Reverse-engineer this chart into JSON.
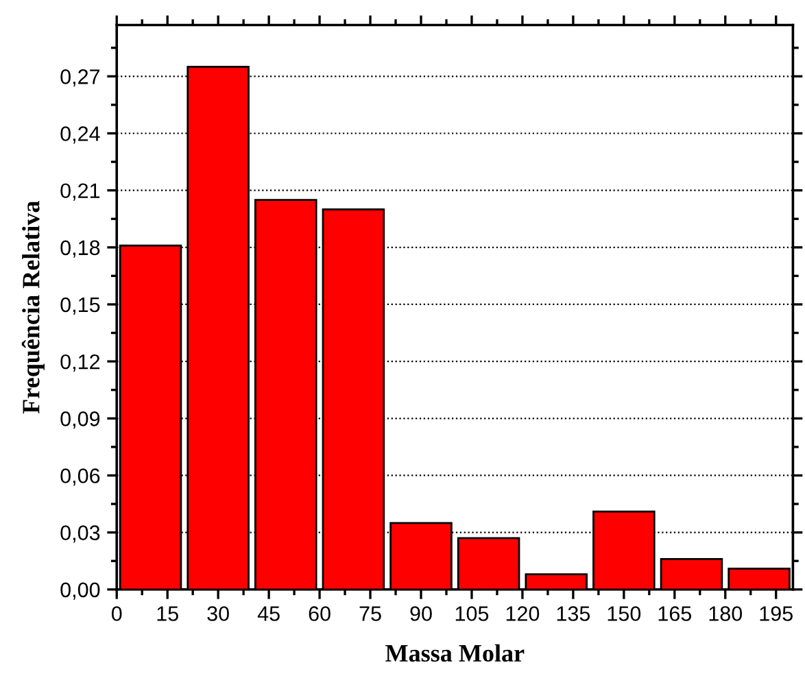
{
  "chart_data": {
    "type": "histogram",
    "xlabel": "Massa Molar",
    "ylabel": "Frequência Relativa",
    "bins": [
      0,
      20,
      40,
      60,
      80,
      100,
      120,
      140,
      160,
      180,
      200
    ],
    "values": [
      0.181,
      0.275,
      0.205,
      0.2,
      0.035,
      0.027,
      0.008,
      0.041,
      0.016,
      0.011
    ],
    "color": "#ff0000",
    "xlim": [
      0,
      200
    ],
    "xticks": [
      0,
      15,
      30,
      45,
      60,
      75,
      90,
      105,
      120,
      135,
      150,
      165,
      180,
      195
    ],
    "ylim": [
      0,
      0.297
    ],
    "yticks": [
      {
        "value": 0,
        "label": "0,00"
      },
      {
        "value": 0.03,
        "label": "0,03"
      },
      {
        "value": 0.06,
        "label": "0,06"
      },
      {
        "value": 0.09,
        "label": "0,09"
      },
      {
        "value": 0.12,
        "label": "0,12"
      },
      {
        "value": 0.15,
        "label": "0,15"
      },
      {
        "value": 0.18,
        "label": "0,18"
      },
      {
        "value": 0.21,
        "label": "0,21"
      },
      {
        "value": 0.24,
        "label": "0,24"
      },
      {
        "value": 0.27,
        "label": "0,27"
      }
    ],
    "grid": "y",
    "line_style": "dotted"
  }
}
